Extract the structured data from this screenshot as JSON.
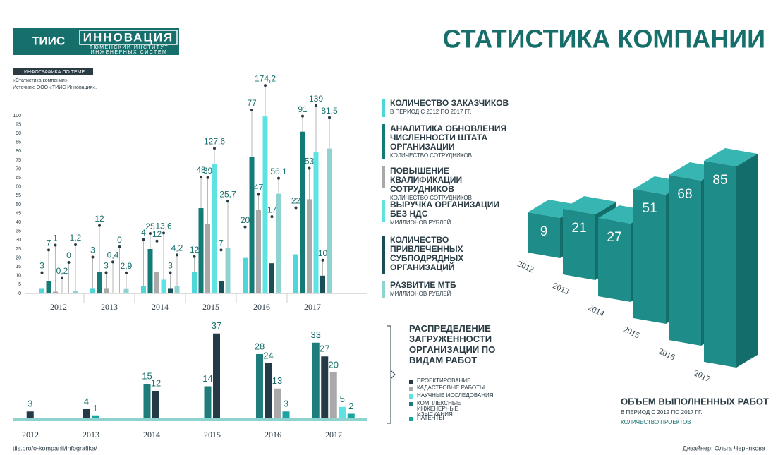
{
  "header": {
    "logo": "ТИИС",
    "brand": "ИННОВАЦИЯ",
    "brand_sub": "ТЮМЕНСКИЙ ИНСТИТУТ ИНЖЕНЕРНЫХ СИСТЕМ",
    "title": "СТАТИСТИКА КОМПАНИИ",
    "topic_label": "ИНФОГРАФИКА ПО ТЕМЕ:",
    "topic": "«Статистика компании»",
    "source": "Источник: ООО «ТИИС Инновация»."
  },
  "footer": {
    "url": "tiis.pro/o-kompanii/infografika/",
    "designer": "Дизайнер: Ольга Чернякова"
  },
  "chart_data": [
    {
      "type": "bar",
      "categories": [
        "2012",
        "2013",
        "2014",
        "2015",
        "2016",
        "2017"
      ],
      "ylim": [
        0,
        100
      ],
      "yticks": [
        0,
        5,
        10,
        15,
        20,
        25,
        30,
        35,
        40,
        45,
        50,
        55,
        60,
        65,
        70,
        75,
        80,
        85,
        90,
        95,
        100
      ],
      "y2lim": [
        0,
        175
      ],
      "series": [
        {
          "name": "Количество заказчиков",
          "note": "В период с 2012 по 2017 гг.",
          "color": "#4fd6d8",
          "values": [
            3,
            3,
            4,
            12,
            20,
            22
          ]
        },
        {
          "name": "Аналитика обновления численности штата организации",
          "note": "Количество сотрудников",
          "color": "#137a76",
          "values": [
            7,
            12,
            25,
            48,
            77,
            91
          ]
        },
        {
          "name": "Повышение квалификации сотрудников",
          "note": "Количество сотрудников",
          "color": "#a9a9a9",
          "values": [
            1,
            3,
            12,
            39,
            47,
            53
          ]
        },
        {
          "name": "Выручка организации без НДС",
          "note": "Миллионов рублей",
          "color": "#5fe2e2",
          "axis": "y2",
          "values": [
            0.2,
            0.4,
            13.6,
            127.6,
            174.2,
            139
          ],
          "value_labels": [
            "0,2",
            "0,4",
            "13,6",
            "127,6",
            "174,2",
            "139"
          ]
        },
        {
          "name": "Количество привлеченных субподрядных организаций",
          "color": "#1b4f57",
          "values": [
            0,
            0,
            3,
            7,
            17,
            10
          ]
        },
        {
          "name": "Развитие МТБ",
          "note": "Миллионов рублей",
          "color": "#8fd3d0",
          "values": [
            1.2,
            2.9,
            4.2,
            25.7,
            56.1,
            81.5
          ],
          "value_labels": [
            "1,2",
            "2,9",
            "4,2",
            "25,7",
            "56,1",
            "81,5"
          ]
        }
      ]
    },
    {
      "type": "bar",
      "title": "Распределение загруженности организации по видам работ",
      "categories": [
        "2012",
        "2013",
        "2014",
        "2015",
        "2016",
        "2017"
      ],
      "ylim": [
        0,
        40
      ],
      "series": [
        {
          "name": "Комплексные инженерные изыскания",
          "color": "#1e7d7a",
          "values": [
            null,
            null,
            15,
            14,
            28,
            33
          ]
        },
        {
          "name": "Проектирование",
          "color": "#253a47",
          "values": [
            3,
            4,
            12,
            37,
            24,
            27
          ]
        },
        {
          "name": "Кадастровые работы",
          "color": "#a9a9a9",
          "values": [
            null,
            null,
            null,
            null,
            13,
            20
          ]
        },
        {
          "name": "Научные исследования",
          "color": "#5fe2e2",
          "values": [
            null,
            null,
            null,
            null,
            null,
            5
          ]
        },
        {
          "name": "Патенты",
          "color": "#1aa5a3",
          "values": [
            null,
            1,
            null,
            null,
            3,
            2
          ]
        }
      ]
    },
    {
      "type": "bar3d",
      "title": "Объем выполненных работ",
      "subtitle": "В период с 2012 по 2017 гг.",
      "note": "Количество проектов",
      "categories": [
        "2012",
        "2013",
        "2014",
        "2015",
        "2016",
        "2017"
      ],
      "values": [
        9,
        21,
        27,
        51,
        68,
        85
      ],
      "color": "#1e8c89"
    }
  ]
}
